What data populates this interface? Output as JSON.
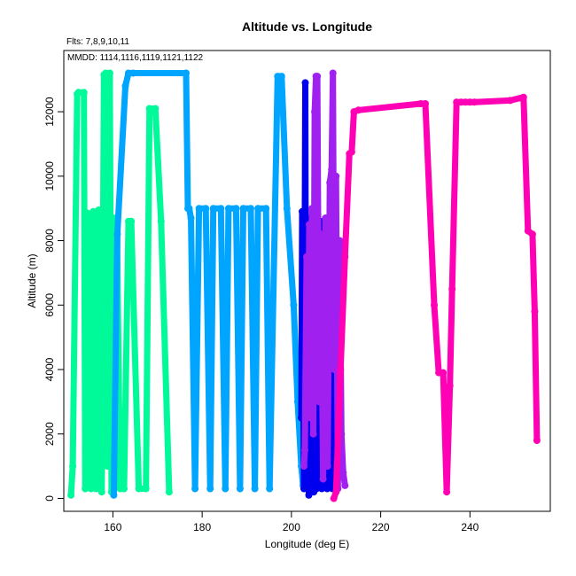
{
  "chart_data": {
    "type": "line",
    "title": "Altitude vs. Longitude",
    "xlabel": "Longitude (deg E)",
    "ylabel": "Altitude (m)",
    "xlim": [
      149,
      258
    ],
    "ylim": [
      -400,
      13900
    ],
    "xticks": [
      160,
      180,
      200,
      220,
      240
    ],
    "yticks": [
      0,
      2000,
      4000,
      6000,
      8000,
      10000,
      12000
    ],
    "grid": false,
    "annotations": [
      "Flts: 7,8,9,10,11",
      "MMDD: 1114,1116,1119,1121,1122"
    ],
    "series": [
      {
        "color": "#00FA9A",
        "x": [
          150.6,
          151.0,
          152.0,
          152.3,
          153.5,
          153.8,
          154.3,
          154.6,
          155.1,
          155.6,
          156.2,
          156.8,
          157.5,
          158.0,
          158.4,
          158.8,
          159.3,
          159.7,
          160.2,
          160.9,
          161.6,
          162.5,
          163.5,
          164.1,
          165.8,
          167.4,
          168.2,
          169.5,
          170.8,
          172.6
        ],
        "y": [
          100,
          1000,
          12550,
          12600,
          12600,
          300,
          8850,
          8800,
          300,
          8900,
          300,
          8950,
          200,
          13150,
          13200,
          1000,
          13200,
          200,
          8700,
          8700,
          300,
          300,
          8600,
          8600,
          300,
          300,
          12100,
          12100,
          8600,
          200
        ]
      },
      {
        "color": "#00A5FF",
        "x": [
          160.2,
          161.0,
          162.8,
          163.5,
          164.5,
          176.4,
          176.8,
          177.1,
          177.5,
          178.4,
          179.3,
          180.8,
          181.8,
          182.5,
          184.2,
          185.2,
          185.9,
          187.6,
          188.5,
          189.2,
          190.9,
          191.8,
          192.5,
          194.3,
          195.1,
          196.9,
          197.8,
          199.0,
          200.5,
          201.4,
          202.2,
          202.6
        ],
        "y": [
          100,
          8200,
          12800,
          13200,
          13200,
          13200,
          9000,
          9000,
          8700,
          300,
          9000,
          9000,
          300,
          9000,
          9000,
          300,
          9000,
          9000,
          300,
          9000,
          9000,
          300,
          9000,
          9000,
          300,
          13100,
          13100,
          9000,
          6000,
          3000,
          1000,
          400
        ]
      },
      {
        "color": "#0000EE",
        "x": [
          202.2,
          202.4,
          202.8,
          203.1,
          203.3,
          203.6,
          203.9,
          204.1,
          204.4,
          204.7,
          205.0,
          205.3,
          205.6,
          205.9,
          206.2,
          206.5,
          206.8,
          207.1,
          207.4,
          207.7,
          208.0,
          208.3,
          208.6,
          208.9,
          209.2,
          209.5,
          209.8,
          210.1
        ],
        "y": [
          2500,
          8900,
          300,
          12900,
          400,
          8700,
          100,
          8500,
          400,
          8600,
          200,
          8700,
          300,
          8800,
          400,
          8600,
          300,
          8500,
          400,
          8700,
          300,
          8600,
          400,
          8500,
          300,
          8400,
          500,
          800
        ]
      },
      {
        "color": "#A020F0",
        "x": [
          202.8,
          203.0,
          203.4,
          203.7,
          204.0,
          204.3,
          204.6,
          204.9,
          205.2,
          205.5,
          205.8,
          206.2,
          206.6,
          207.1,
          207.6,
          208.1,
          208.6,
          209.0,
          209.3,
          209.6,
          210.0,
          210.4,
          210.8,
          211.2,
          211.6,
          212.0
        ],
        "y": [
          1000,
          1500,
          7500,
          3000,
          8500,
          2500,
          9000,
          2000,
          12000,
          13100,
          13100,
          3000,
          8200,
          600,
          8700,
          1000,
          9800,
          10200,
          13200,
          4000,
          10000,
          300,
          8000,
          2000,
          800,
          400
        ]
      },
      {
        "color": "#FF00B4",
        "x": [
          209.5,
          210.0,
          211.0,
          212.0,
          213.0,
          213.5,
          214.0,
          215.0,
          229.0,
          230.0,
          232.0,
          233.0,
          234.0,
          234.8,
          235.5,
          236.0,
          237.0,
          238.0,
          239.0,
          240.0,
          241.0,
          249.0,
          252.0,
          253.0,
          254.0,
          254.5,
          255.0
        ],
        "y": [
          0,
          200,
          4000,
          7500,
          10700,
          10750,
          12000,
          12050,
          12250,
          12250,
          6000,
          3900,
          3900,
          200,
          3500,
          6500,
          12300,
          12300,
          12300,
          12300,
          12300,
          12350,
          12450,
          8300,
          8200,
          5800,
          1800
        ]
      }
    ]
  }
}
